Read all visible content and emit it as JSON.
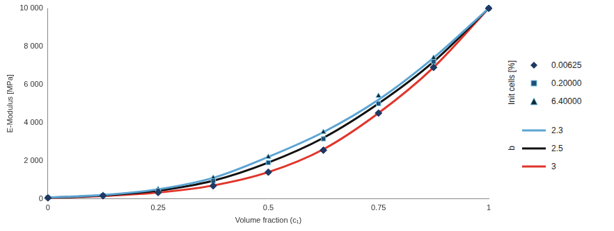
{
  "chart_data": {
    "type": "line",
    "x_label": "Volume fraction (c₁)",
    "y_label": "E-Modulus [MPa]",
    "x": [
      0,
      0.125,
      0.25,
      0.375,
      0.5,
      0.625,
      0.75,
      0.875,
      1
    ],
    "xlim": [
      0,
      1
    ],
    "xticks": [
      0,
      0.25,
      0.5,
      0.75,
      1
    ],
    "ylim": [
      0,
      10000
    ],
    "yticks": [
      0,
      {
        "value": 2000,
        "label": "2 000"
      },
      {
        "value": 4000,
        "label": "4 000"
      },
      {
        "value": 6000,
        "label": "6 000"
      },
      {
        "value": 8000,
        "label": "8 000"
      },
      {
        "value": 10000,
        "label": "10 000"
      }
    ],
    "grid": false,
    "legend": "right",
    "series": [
      {
        "name": "0.00625",
        "group": "Init cells [%]",
        "type": "scatter",
        "marker": "diamond",
        "color": "#1f3864",
        "values": [
          50,
          160,
          330,
          680,
          1400,
          2550,
          4500,
          6900,
          10000
        ]
      },
      {
        "name": "0.20000",
        "group": "Init cells [%]",
        "type": "scatter",
        "marker": "square",
        "color": "#1f4e79",
        "values": [
          60,
          180,
          430,
          940,
          1900,
          3150,
          5000,
          7200,
          10000
        ]
      },
      {
        "name": "6.40000",
        "group": "Init cells [%]",
        "type": "scatter",
        "marker": "triangle",
        "color": "#0f2a3a",
        "values": [
          70,
          200,
          500,
          1100,
          2200,
          3500,
          5400,
          7400,
          10000
        ]
      },
      {
        "name": "2.3",
        "group": "b",
        "type": "line",
        "line_style": "solid",
        "color": "#5ba4d4",
        "values": [
          70,
          200,
          500,
          1100,
          2200,
          3500,
          5200,
          7400,
          10000
        ]
      },
      {
        "name": "2.5",
        "group": "b",
        "type": "line",
        "line_style": "solid",
        "color": "#111111",
        "values": [
          60,
          180,
          430,
          950,
          1900,
          3200,
          5000,
          7200,
          10000
        ]
      },
      {
        "name": "3",
        "group": "b",
        "type": "line",
        "line_style": "solid",
        "color": "#e0352b",
        "values": [
          50,
          150,
          330,
          700,
          1400,
          2600,
          4500,
          6900,
          10000
        ]
      }
    ]
  }
}
